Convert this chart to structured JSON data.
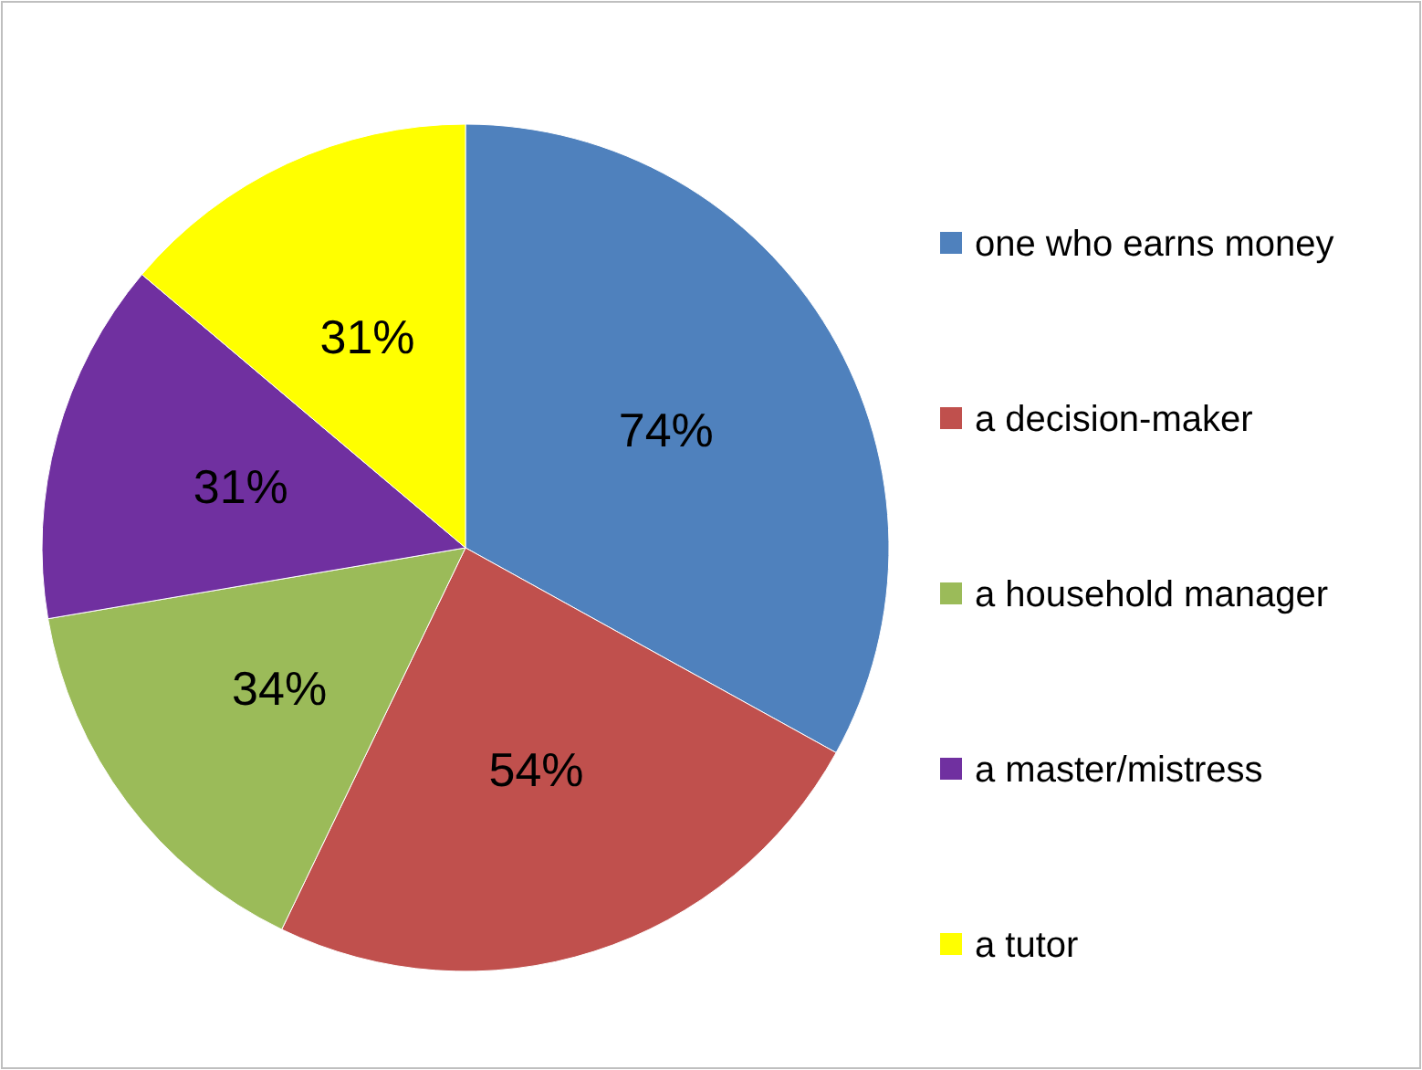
{
  "chart_data": {
    "type": "pie",
    "categories": [
      "one who earns money",
      "a decision-maker",
      "a household manager",
      "a master/mistress",
      "a tutor"
    ],
    "values": [
      74,
      54,
      34,
      31,
      31
    ],
    "value_labels": [
      "74%",
      "54%",
      "34%",
      "31%",
      "31%"
    ],
    "colors": [
      "#4f81bd",
      "#c0504d",
      "#9bbb59",
      "#7030a0",
      "#ffff00"
    ],
    "legend": "right"
  }
}
